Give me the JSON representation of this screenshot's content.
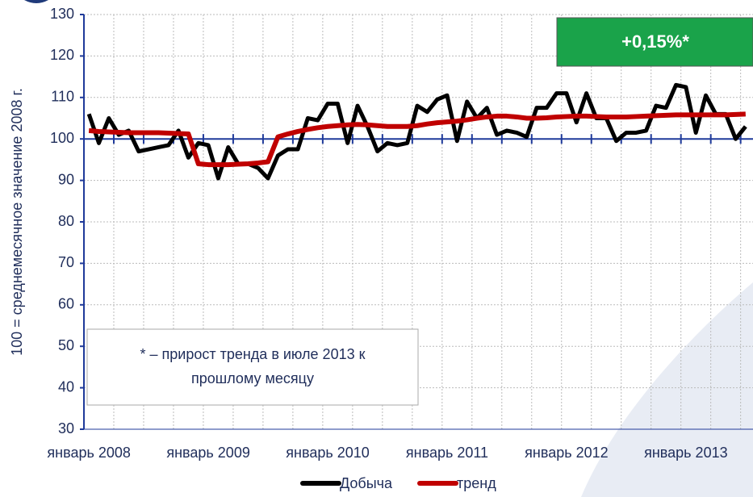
{
  "chart_data": {
    "type": "line",
    "ylabel": "100 = среднемесячное значение 2008 г.",
    "categories": [
      "январь 2008",
      null,
      null,
      null,
      null,
      null,
      null,
      null,
      null,
      null,
      null,
      null,
      "январь 2009",
      null,
      null,
      null,
      null,
      null,
      null,
      null,
      null,
      null,
      null,
      null,
      "январь 2010",
      null,
      null,
      null,
      null,
      null,
      null,
      null,
      null,
      null,
      null,
      null,
      "январь 2011",
      null,
      null,
      null,
      null,
      null,
      null,
      null,
      null,
      null,
      null,
      null,
      "январь 2012",
      null,
      null,
      null,
      null,
      null,
      null,
      null,
      null,
      null,
      null,
      null,
      "январь 2013",
      null,
      null,
      null,
      null,
      null,
      null
    ],
    "series": [
      {
        "name": "Добыча",
        "color": "#000000",
        "values": [
          106,
          99,
          105,
          101,
          102,
          97,
          97.5,
          98,
          98.5,
          102,
          95.5,
          99,
          98.5,
          90.5,
          98,
          94,
          94,
          93,
          90.5,
          96,
          97.5,
          97.5,
          105,
          104.5,
          108.5,
          108.5,
          99,
          108,
          103,
          97,
          99,
          98.5,
          99,
          108,
          106.5,
          109.5,
          110.5,
          99.5,
          109,
          105,
          107.5,
          101,
          102,
          101.5,
          100.5,
          107.5,
          107.5,
          111,
          111,
          104,
          111,
          105,
          105,
          99.5,
          101.5,
          101.5,
          102,
          108,
          107.5,
          113,
          112.5,
          101.5,
          110.5,
          106,
          106,
          100,
          103
        ]
      },
      {
        "name": "тренд",
        "color": "#c00000",
        "values": [
          102,
          101.8,
          101.7,
          101.6,
          101.5,
          101.5,
          101.5,
          101.5,
          101.4,
          101.3,
          101.2,
          94,
          93.8,
          93.8,
          93.8,
          93.9,
          94,
          94.2,
          94.5,
          100.5,
          101.2,
          101.8,
          102.3,
          102.7,
          103,
          103.2,
          103.4,
          103.5,
          103.4,
          103.2,
          103,
          103,
          103,
          103.2,
          103.6,
          103.9,
          104.1,
          104.3,
          104.6,
          105,
          105.3,
          105.5,
          105.5,
          105.3,
          105,
          105,
          105.1,
          105.3,
          105.4,
          105.5,
          105.5,
          105.4,
          105.3,
          105.3,
          105.3,
          105.4,
          105.5,
          105.6,
          105.7,
          105.8,
          105.8,
          105.8,
          105.8,
          105.8,
          105.8,
          105.9,
          106
        ]
      }
    ],
    "ylim": [
      30,
      130
    ],
    "yticks": [
      30,
      40,
      50,
      60,
      70,
      80,
      90,
      100,
      110,
      120,
      130
    ],
    "x_axis_crosses": 100,
    "grid": true,
    "badge": "+0,15%*",
    "note": [
      "* – прирост тренда в июле 2013 к",
      "прошлому месяцу"
    ]
  }
}
